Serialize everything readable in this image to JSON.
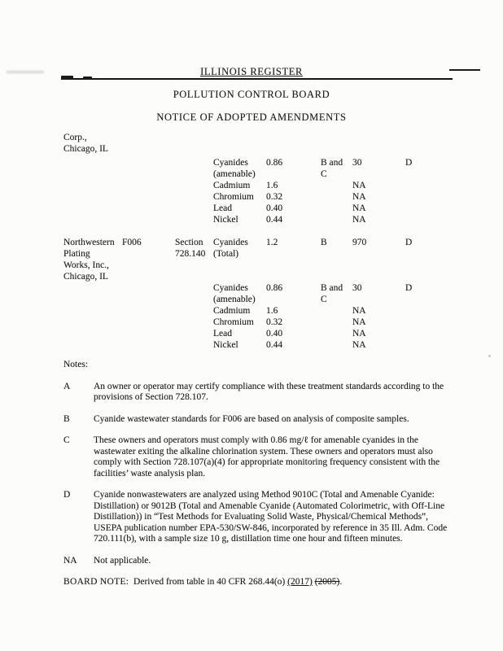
{
  "header": {
    "register_title": "ILLINOIS REGISTER",
    "board_title": "POLLUTION CONTROL BOARD",
    "notice_title": "NOTICE OF ADOPTED AMENDMENTS"
  },
  "carryover": {
    "line1": "Corp.,",
    "line2": "Chicago, IL"
  },
  "table": {
    "rows": [
      {
        "cells": [
          "",
          "",
          "",
          "Cyanides",
          "0.86",
          "B and",
          "30",
          "D"
        ]
      },
      {
        "cells": [
          "",
          "",
          "",
          "(amenable)",
          "",
          "C",
          "",
          ""
        ]
      },
      {
        "cells": [
          "",
          "",
          "",
          "Cadmium",
          "1.6",
          "",
          "NA",
          ""
        ]
      },
      {
        "cells": [
          "",
          "",
          "",
          "Chromium",
          "0.32",
          "",
          "NA",
          ""
        ]
      },
      {
        "cells": [
          "",
          "",
          "",
          "Lead",
          "0.40",
          "",
          "NA",
          ""
        ]
      },
      {
        "cells": [
          "",
          "",
          "",
          "Nickel",
          "0.44",
          "",
          "NA",
          ""
        ]
      },
      {
        "cells": [
          "Northwestern",
          "F006",
          "Section",
          "Cyanides",
          "1.2",
          "B",
          "970",
          "D"
        ],
        "gap": true
      },
      {
        "cells": [
          "Plating",
          "",
          "728.140",
          "(Total)",
          "",
          "",
          "",
          ""
        ]
      },
      {
        "cells": [
          "Works, Inc.,",
          "",
          "",
          "",
          "",
          "",
          "",
          ""
        ]
      },
      {
        "cells": [
          "Chicago, IL",
          "",
          "",
          "",
          "",
          "",
          "",
          ""
        ]
      },
      {
        "cells": [
          "",
          "",
          "",
          "Cyanides",
          "0.86",
          "B and",
          "30",
          "D"
        ]
      },
      {
        "cells": [
          "",
          "",
          "",
          "(amenable)",
          "",
          "C",
          "",
          ""
        ]
      },
      {
        "cells": [
          "",
          "",
          "",
          "Cadmium",
          "1.6",
          "",
          "NA",
          ""
        ]
      },
      {
        "cells": [
          "",
          "",
          "",
          "Chromium",
          "0.32",
          "",
          "NA",
          ""
        ]
      },
      {
        "cells": [
          "",
          "",
          "",
          "Lead",
          "0.40",
          "",
          "NA",
          ""
        ]
      },
      {
        "cells": [
          "",
          "",
          "",
          "Nickel",
          "0.44",
          "",
          "NA",
          ""
        ]
      }
    ]
  },
  "notes": {
    "heading": "Notes:",
    "items": [
      {
        "marker": "A",
        "text": "An owner or operator may certify compliance with these treatment standards according to the provisions of Section 728.107."
      },
      {
        "marker": "B",
        "text": "Cyanide wastewater standards for F006 are based on analysis of composite samples."
      },
      {
        "marker": "C",
        "text": "These owners and operators must comply with 0.86 mg/ℓ for amenable cyanides in the wastewater exiting the alkaline chlorination system.  These owners and operators must also comply with Section 728.107(a)(4) for appropriate monitoring frequency consistent with the facilities’ waste analysis plan."
      },
      {
        "marker": "D",
        "text": "Cyanide nonwastewaters are analyzed using Method 9010C (Total and Amenable Cyanide: Distillation) or 9012B (Total and Amenable Cyanide (Automated Colorimetric, with Off-Line Distillation)) in “Test Methods for Evaluating Solid Waste, Physical/Chemical Methods”, USEPA publication number EPA-530/SW-846, incorporated by reference in 35 Ill. Adm. Code 720.111(b), with a sample size 10 g, distillation time one hour and fifteen minutes."
      },
      {
        "marker": "NA",
        "text": "Not applicable."
      }
    ]
  },
  "board_note": {
    "label": "BOARD NOTE:",
    "prefix": "Derived from table in 40 CFR 268.44(o)",
    "inserted": "(2017)",
    "deleted": "(2005)",
    "suffix": "."
  }
}
